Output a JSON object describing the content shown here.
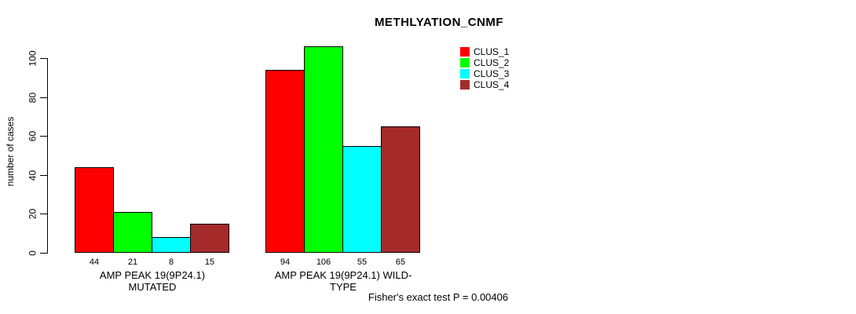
{
  "chart_data": {
    "type": "bar",
    "title": "METHLYATION_CNMF",
    "ylabel": "number of cases",
    "xlabel": "",
    "ylim": [
      0,
      100
    ],
    "yticks": [
      0,
      20,
      40,
      60,
      80,
      100
    ],
    "grid": false,
    "legend_position": "top-right",
    "categories": [
      "AMP PEAK 19(9P24.1) MUTATED",
      "AMP PEAK 19(9P24.1) WILD-TYPE"
    ],
    "groups": [
      {
        "label": "AMP PEAK 19(9P24.1) MUTATED",
        "values": [
          44,
          21,
          8,
          15
        ]
      },
      {
        "label": "AMP PEAK 19(9P24.1) WILD-TYPE",
        "values": [
          94,
          106,
          55,
          65
        ]
      }
    ],
    "series": [
      {
        "name": "CLUS_1",
        "color": "#FF0000"
      },
      {
        "name": "CLUS_2",
        "color": "#00FF00"
      },
      {
        "name": "CLUS_3",
        "color": "#00FFFF"
      },
      {
        "name": "CLUS_4",
        "color": "#A52A2A"
      }
    ],
    "bar_border_color": "#000000",
    "footnote": "Fisher's exact test P = 0.00406"
  }
}
